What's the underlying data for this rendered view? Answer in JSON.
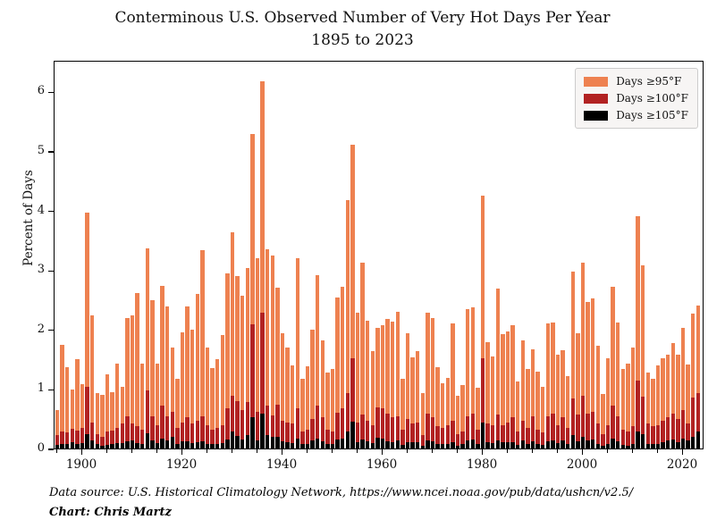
{
  "title": {
    "line1": "Conterminous U.S. Observed Number of Very Hot Days Per Year",
    "line2": "1895 to 2023"
  },
  "y_axis": {
    "label": "Percent of Days",
    "ticks": [
      0,
      1,
      2,
      3,
      4,
      5,
      6
    ]
  },
  "x_axis": {
    "major_ticks": [
      1900,
      1920,
      1940,
      1960,
      1980,
      2000,
      2020
    ]
  },
  "legend": [
    {
      "label": "Days ≥95°F",
      "color": "#EE8150"
    },
    {
      "label": "Days ≥100°F",
      "color": "#B22222"
    },
    {
      "label": "Days ≥105°F",
      "color": "#000000"
    }
  ],
  "footer": {
    "source": "Data source: U.S. Historical Climatology Network, https://www.ncei.noaa.gov/pub/data/ushcn/v2.5/",
    "credit": "Chart: Chris Martz"
  },
  "chart_data": {
    "type": "bar",
    "overlaid": true,
    "title": "Conterminous U.S. Observed Number of Very Hot Days Per Year 1895 to 2023",
    "xlabel": "",
    "ylabel": "Percent of Days",
    "ylim": [
      0,
      6.53
    ],
    "x_range": [
      1895,
      2023
    ],
    "grid": false,
    "legend_position": "upper right",
    "series": [
      {
        "name": "Days ≥95°F",
        "color": "#EE8150",
        "values": [
          0.65,
          1.74,
          1.37,
          0.99,
          1.5,
          1.08,
          3.96,
          2.24,
          0.93,
          0.9,
          1.25,
          0.94,
          1.42,
          1.04,
          2.19,
          2.24,
          2.62,
          1.42,
          3.37,
          2.49,
          1.42,
          2.74,
          2.39,
          1.69,
          1.17,
          1.95,
          2.39,
          2.0,
          2.6,
          3.33,
          1.69,
          1.35,
          1.5,
          1.9,
          2.94,
          3.63,
          2.9,
          2.57,
          3.03,
          5.28,
          3.2,
          6.17,
          3.35,
          3.25,
          2.7,
          1.94,
          1.69,
          1.39,
          3.2,
          1.17,
          1.38,
          2.0,
          2.92,
          1.82,
          1.28,
          1.34,
          2.54,
          2.72,
          4.18,
          5.1,
          2.29,
          3.12,
          2.14,
          1.64,
          2.02,
          2.07,
          2.18,
          2.13,
          2.3,
          1.17,
          1.93,
          1.53,
          1.64,
          0.93,
          2.28,
          2.19,
          1.37,
          1.1,
          1.19,
          2.1,
          0.89,
          1.07,
          2.34,
          2.37,
          1.02,
          4.25,
          1.79,
          1.54,
          2.69,
          1.92,
          1.97,
          2.07,
          1.12,
          1.82,
          1.34,
          1.67,
          1.29,
          1.04,
          2.1,
          2.12,
          1.57,
          1.65,
          1.22,
          2.98,
          1.94,
          3.12,
          2.47,
          2.52,
          1.72,
          0.92,
          1.52,
          2.72,
          2.12,
          1.34,
          1.42,
          1.69,
          3.91,
          3.08,
          1.27,
          1.17,
          1.39,
          1.52,
          1.57,
          1.77,
          1.58,
          2.02,
          1.41,
          2.27,
          2.4
        ]
      },
      {
        "name": "Days ≥100°F",
        "color": "#B22222",
        "values": [
          0.22,
          0.28,
          0.27,
          0.33,
          0.3,
          0.34,
          1.03,
          0.44,
          0.24,
          0.2,
          0.28,
          0.3,
          0.35,
          0.42,
          0.54,
          0.42,
          0.37,
          0.32,
          0.97,
          0.54,
          0.39,
          0.72,
          0.54,
          0.62,
          0.34,
          0.44,
          0.52,
          0.42,
          0.47,
          0.54,
          0.39,
          0.32,
          0.34,
          0.39,
          0.67,
          0.89,
          0.79,
          0.64,
          0.78,
          2.09,
          0.62,
          2.28,
          0.72,
          0.55,
          0.74,
          0.47,
          0.44,
          0.42,
          0.67,
          0.29,
          0.32,
          0.49,
          0.72,
          0.52,
          0.32,
          0.29,
          0.6,
          0.67,
          0.93,
          1.52,
          0.44,
          0.57,
          0.47,
          0.39,
          0.69,
          0.67,
          0.59,
          0.52,
          0.54,
          0.32,
          0.49,
          0.42,
          0.44,
          0.22,
          0.59,
          0.52,
          0.37,
          0.34,
          0.39,
          0.47,
          0.24,
          0.29,
          0.54,
          0.59,
          0.32,
          1.52,
          0.42,
          0.39,
          0.57,
          0.39,
          0.44,
          0.52,
          0.29,
          0.47,
          0.34,
          0.54,
          0.32,
          0.27,
          0.54,
          0.59,
          0.39,
          0.52,
          0.34,
          0.84,
          0.57,
          0.89,
          0.59,
          0.62,
          0.42,
          0.24,
          0.39,
          0.72,
          0.54,
          0.32,
          0.29,
          0.37,
          1.14,
          0.87,
          0.42,
          0.37,
          0.39,
          0.47,
          0.52,
          0.59,
          0.49,
          0.64,
          0.42,
          0.85,
          0.93
        ]
      },
      {
        "name": "Days ≥105°F",
        "color": "#000000",
        "values": [
          0.06,
          0.08,
          0.07,
          0.1,
          0.08,
          0.09,
          0.24,
          0.14,
          0.07,
          0.04,
          0.06,
          0.08,
          0.09,
          0.09,
          0.12,
          0.13,
          0.09,
          0.08,
          0.25,
          0.14,
          0.09,
          0.17,
          0.14,
          0.2,
          0.08,
          0.12,
          0.12,
          0.09,
          0.1,
          0.12,
          0.08,
          0.07,
          0.08,
          0.09,
          0.15,
          0.28,
          0.21,
          0.15,
          0.22,
          0.52,
          0.14,
          0.59,
          0.22,
          0.19,
          0.19,
          0.12,
          0.1,
          0.09,
          0.17,
          0.07,
          0.08,
          0.13,
          0.17,
          0.12,
          0.07,
          0.07,
          0.15,
          0.17,
          0.28,
          0.45,
          0.11,
          0.15,
          0.12,
          0.09,
          0.18,
          0.17,
          0.12,
          0.11,
          0.13,
          0.06,
          0.11,
          0.1,
          0.1,
          0.04,
          0.13,
          0.12,
          0.08,
          0.07,
          0.08,
          0.11,
          0.05,
          0.07,
          0.13,
          0.15,
          0.07,
          0.44,
          0.1,
          0.09,
          0.14,
          0.1,
          0.11,
          0.11,
          0.06,
          0.13,
          0.08,
          0.12,
          0.07,
          0.06,
          0.12,
          0.14,
          0.09,
          0.14,
          0.08,
          0.22,
          0.12,
          0.2,
          0.13,
          0.15,
          0.08,
          0.05,
          0.08,
          0.17,
          0.12,
          0.06,
          0.05,
          0.07,
          0.28,
          0.24,
          0.08,
          0.08,
          0.08,
          0.1,
          0.13,
          0.15,
          0.11,
          0.17,
          0.13,
          0.2,
          0.28
        ]
      }
    ]
  }
}
